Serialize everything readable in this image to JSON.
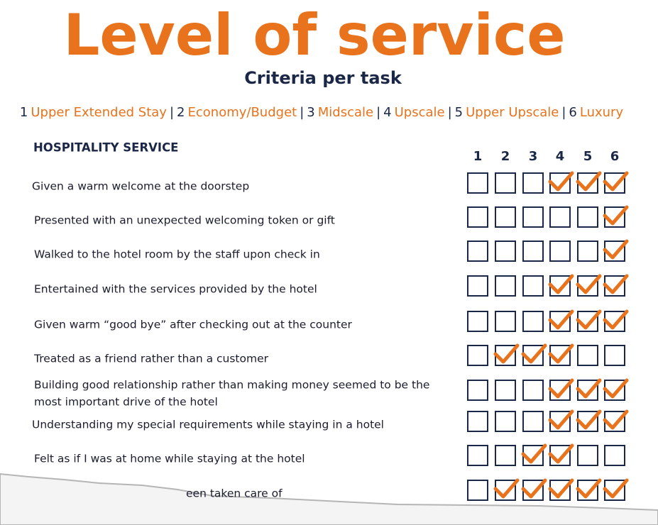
{
  "title": "Level of service",
  "subtitle": "Criteria per task",
  "legend": {
    "separator": "|",
    "items": [
      {
        "number": "1",
        "name": "Upper Extended Stay"
      },
      {
        "number": "2",
        "name": "Economy/Budget"
      },
      {
        "number": "3",
        "name": "Midscale"
      },
      {
        "number": "4",
        "name": "Upscale"
      },
      {
        "number": "5",
        "name": "Upper Upscale"
      },
      {
        "number": "6",
        "name": "Luxury"
      }
    ]
  },
  "section": {
    "heading": "HOSPITALITY SERVICE",
    "columns": [
      "1",
      "2",
      "3",
      "4",
      "5",
      "6"
    ],
    "rows": [
      {
        "lines": [
          "Given a warm welcome at the doorstep"
        ],
        "checks": [
          false,
          false,
          false,
          true,
          true,
          true
        ]
      },
      {
        "lines": [
          "Presented with an unexpected welcoming token or gift"
        ],
        "checks": [
          false,
          false,
          false,
          false,
          false,
          true
        ]
      },
      {
        "lines": [
          "Walked to the hotel room by the staff upon check in"
        ],
        "checks": [
          false,
          false,
          false,
          false,
          false,
          true
        ]
      },
      {
        "lines": [
          "Entertained with the services provided by the hotel"
        ],
        "checks": [
          false,
          false,
          false,
          true,
          true,
          true
        ]
      },
      {
        "lines": [
          "Given warm “good bye” after checking out at the counter"
        ],
        "checks": [
          false,
          false,
          false,
          true,
          true,
          true
        ]
      },
      {
        "lines": [
          "Treated as a friend rather than a customer"
        ],
        "checks": [
          false,
          true,
          true,
          true,
          false,
          false
        ]
      },
      {
        "lines": [
          "Building good relationship rather than making money seemed to be the",
          "most important drive of the hotel"
        ],
        "checks": [
          false,
          false,
          false,
          true,
          true,
          true
        ]
      },
      {
        "lines": [
          "Understanding my special requirements while staying in a hotel"
        ],
        "checks": [
          false,
          false,
          false,
          true,
          true,
          true
        ]
      },
      {
        "lines": [
          "Felt as if I was at home while staying at the hotel"
        ],
        "checks": [
          false,
          false,
          true,
          true,
          false,
          false
        ]
      },
      {
        "lines": [
          "een taken care of"
        ],
        "checks": [
          false,
          true,
          true,
          true,
          true,
          true
        ]
      }
    ]
  }
}
